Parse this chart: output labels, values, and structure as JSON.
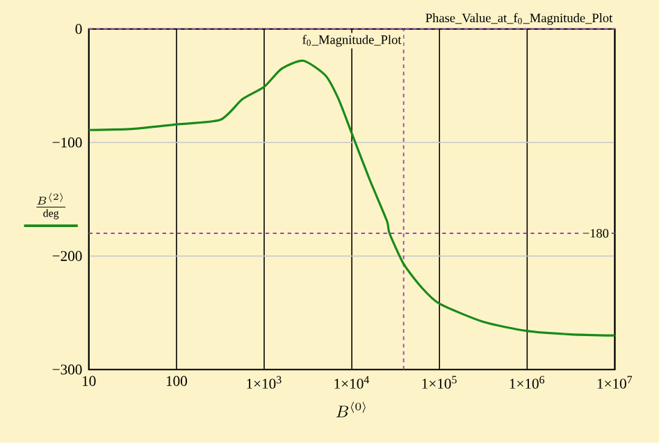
{
  "chart_data": {
    "type": "line",
    "log": "x",
    "grid": true,
    "xlabel": "B^{\\langle 0\\rangle}",
    "ylabel": "\\frac{B^{\\langle 2\\rangle}}{\\mathrm{deg}}",
    "xlim": [
      10,
      10000000
    ],
    "ylim": [
      -300,
      0
    ],
    "xticks": [
      10,
      100,
      {
        "value": 1000,
        "label": "1×10$^{3}$"
      },
      {
        "value": 10000,
        "label": "1×10$^{4}$"
      },
      {
        "value": 100000,
        "label": "1×10$^{5}$"
      },
      {
        "value": 1000000,
        "label": "1×10$^{6}$"
      },
      {
        "value": 10000000,
        "label": "1×10$^{7}$"
      }
    ],
    "yticks": [
      {
        "value": 0,
        "label": "0"
      },
      {
        "value": -100,
        "label": "−100"
      },
      {
        "value": -200,
        "label": "−200"
      },
      {
        "value": -300,
        "label": "−300"
      }
    ],
    "series": [
      {
        "color": "#1a8a1a",
        "x": [
          10,
          31.6,
          100,
          316,
          562,
          1000,
          1585,
          2800,
          5012,
          7079,
          10000,
          15849,
          25119,
          26915,
          39000,
          63096,
          100000,
          316228,
          1000000,
          3162278,
          10000000
        ],
        "values": [
          -89,
          -88,
          -84,
          -80,
          -62,
          -51,
          -35,
          -28,
          -41,
          -62,
          -92,
          -132,
          -169,
          -180,
          -207,
          -228,
          -242,
          -258,
          -266,
          -269,
          -270
        ]
      }
    ],
    "ref_lines": [
      {
        "axis": "y",
        "value": -180,
        "label": "−180",
        "color": "#a040c0",
        "line_style": "dashed"
      },
      {
        "axis": "y",
        "value": 0,
        "label": "Phase_Value_at_f$_{0}$_Magnitude_Plot",
        "color": "#a040c0",
        "line_style": "dashed"
      },
      {
        "axis": "x",
        "value": 39000,
        "label": "f$_{0}$_Magnitude_Plot",
        "color": "#a040c0",
        "line_style": "dashed"
      }
    ]
  }
}
